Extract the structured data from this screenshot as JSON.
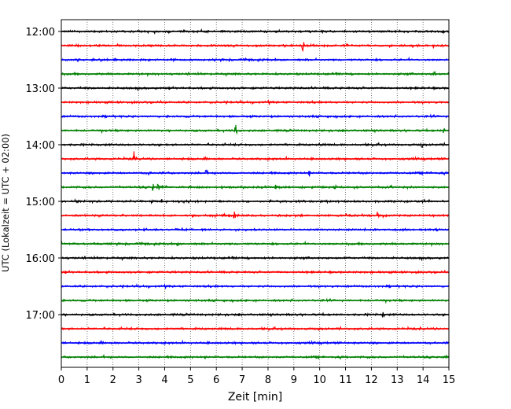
{
  "chart_data": {
    "type": "line",
    "description_kind": "helicorder",
    "xlabel": "Zeit  [min]",
    "ylabel": "UTC (Lokalzeit = UTC + 02:00)",
    "xlim": [
      0,
      15
    ],
    "x_ticks": [
      "0",
      "1",
      "2",
      "3",
      "4",
      "5",
      "6",
      "7",
      "8",
      "9",
      "10",
      "11",
      "12",
      "13",
      "14",
      "15"
    ],
    "y_tick_labels": [
      "12:00",
      "13:00",
      "14:00",
      "15:00",
      "16:00",
      "17:00"
    ],
    "trace_colors": [
      "#000000",
      "#ff0000",
      "#0000ff",
      "#008000"
    ],
    "grid": "vertical-dotted",
    "traces": [
      {
        "start": "12:00",
        "color": "#000000",
        "events": []
      },
      {
        "start": "12:15",
        "color": "#ff0000",
        "events": [
          {
            "t": 9.35,
            "amp": 10
          },
          {
            "t": 11.05,
            "amp": 9
          },
          {
            "t": 13.6,
            "amp": 4
          },
          {
            "t": 14.4,
            "amp": 4
          }
        ]
      },
      {
        "start": "12:30",
        "color": "#0000ff",
        "events": []
      },
      {
        "start": "12:45",
        "color": "#008000",
        "events": [
          {
            "t": 14.45,
            "amp": 7
          }
        ]
      },
      {
        "start": "13:00",
        "color": "#000000",
        "events": []
      },
      {
        "start": "13:15",
        "color": "#ff0000",
        "events": []
      },
      {
        "start": "13:30",
        "color": "#0000ff",
        "events": []
      },
      {
        "start": "13:45",
        "color": "#008000",
        "events": [
          {
            "t": 6.75,
            "amp": 11
          },
          {
            "t": 14.8,
            "amp": 4
          }
        ]
      },
      {
        "start": "14:00",
        "color": "#000000",
        "events": [
          {
            "t": 10.0,
            "amp": 4
          },
          {
            "t": 13.95,
            "amp": 5
          }
        ]
      },
      {
        "start": "14:15",
        "color": "#ff0000",
        "events": [
          {
            "t": 2.8,
            "amp": 12
          }
        ]
      },
      {
        "start": "14:30",
        "color": "#0000ff",
        "events": [
          {
            "t": 1.5,
            "amp": 4
          },
          {
            "t": 3.4,
            "amp": 4
          },
          {
            "t": 5.6,
            "amp": 6
          },
          {
            "t": 9.6,
            "amp": 5
          },
          {
            "t": 14.3,
            "amp": 4
          }
        ]
      },
      {
        "start": "14:45",
        "color": "#008000",
        "events": [
          {
            "t": 3.55,
            "amp": 6
          },
          {
            "t": 3.75,
            "amp": 8
          },
          {
            "t": 8.3,
            "amp": 4
          },
          {
            "t": 10.6,
            "amp": 4
          }
        ]
      },
      {
        "start": "15:00",
        "color": "#000000",
        "events": [
          {
            "t": 3.9,
            "amp": 4
          },
          {
            "t": 13.95,
            "amp": 5
          }
        ]
      },
      {
        "start": "15:15",
        "color": "#ff0000",
        "events": [
          {
            "t": 6.7,
            "amp": 9
          },
          {
            "t": 12.25,
            "amp": 9
          }
        ]
      },
      {
        "start": "15:30",
        "color": "#0000ff",
        "events": []
      },
      {
        "start": "15:45",
        "color": "#008000",
        "events": [
          {
            "t": 4.5,
            "amp": 4
          }
        ]
      },
      {
        "start": "16:00",
        "color": "#000000",
        "events": []
      },
      {
        "start": "16:15",
        "color": "#ff0000",
        "events": []
      },
      {
        "start": "16:30",
        "color": "#0000ff",
        "events": []
      },
      {
        "start": "16:45",
        "color": "#008000",
        "events": []
      },
      {
        "start": "17:00",
        "color": "#000000",
        "events": [
          {
            "t": 12.45,
            "amp": 6
          }
        ]
      },
      {
        "start": "17:15",
        "color": "#ff0000",
        "events": []
      },
      {
        "start": "17:30",
        "color": "#0000ff",
        "events": []
      },
      {
        "start": "17:45",
        "color": "#008000",
        "events": []
      }
    ]
  }
}
